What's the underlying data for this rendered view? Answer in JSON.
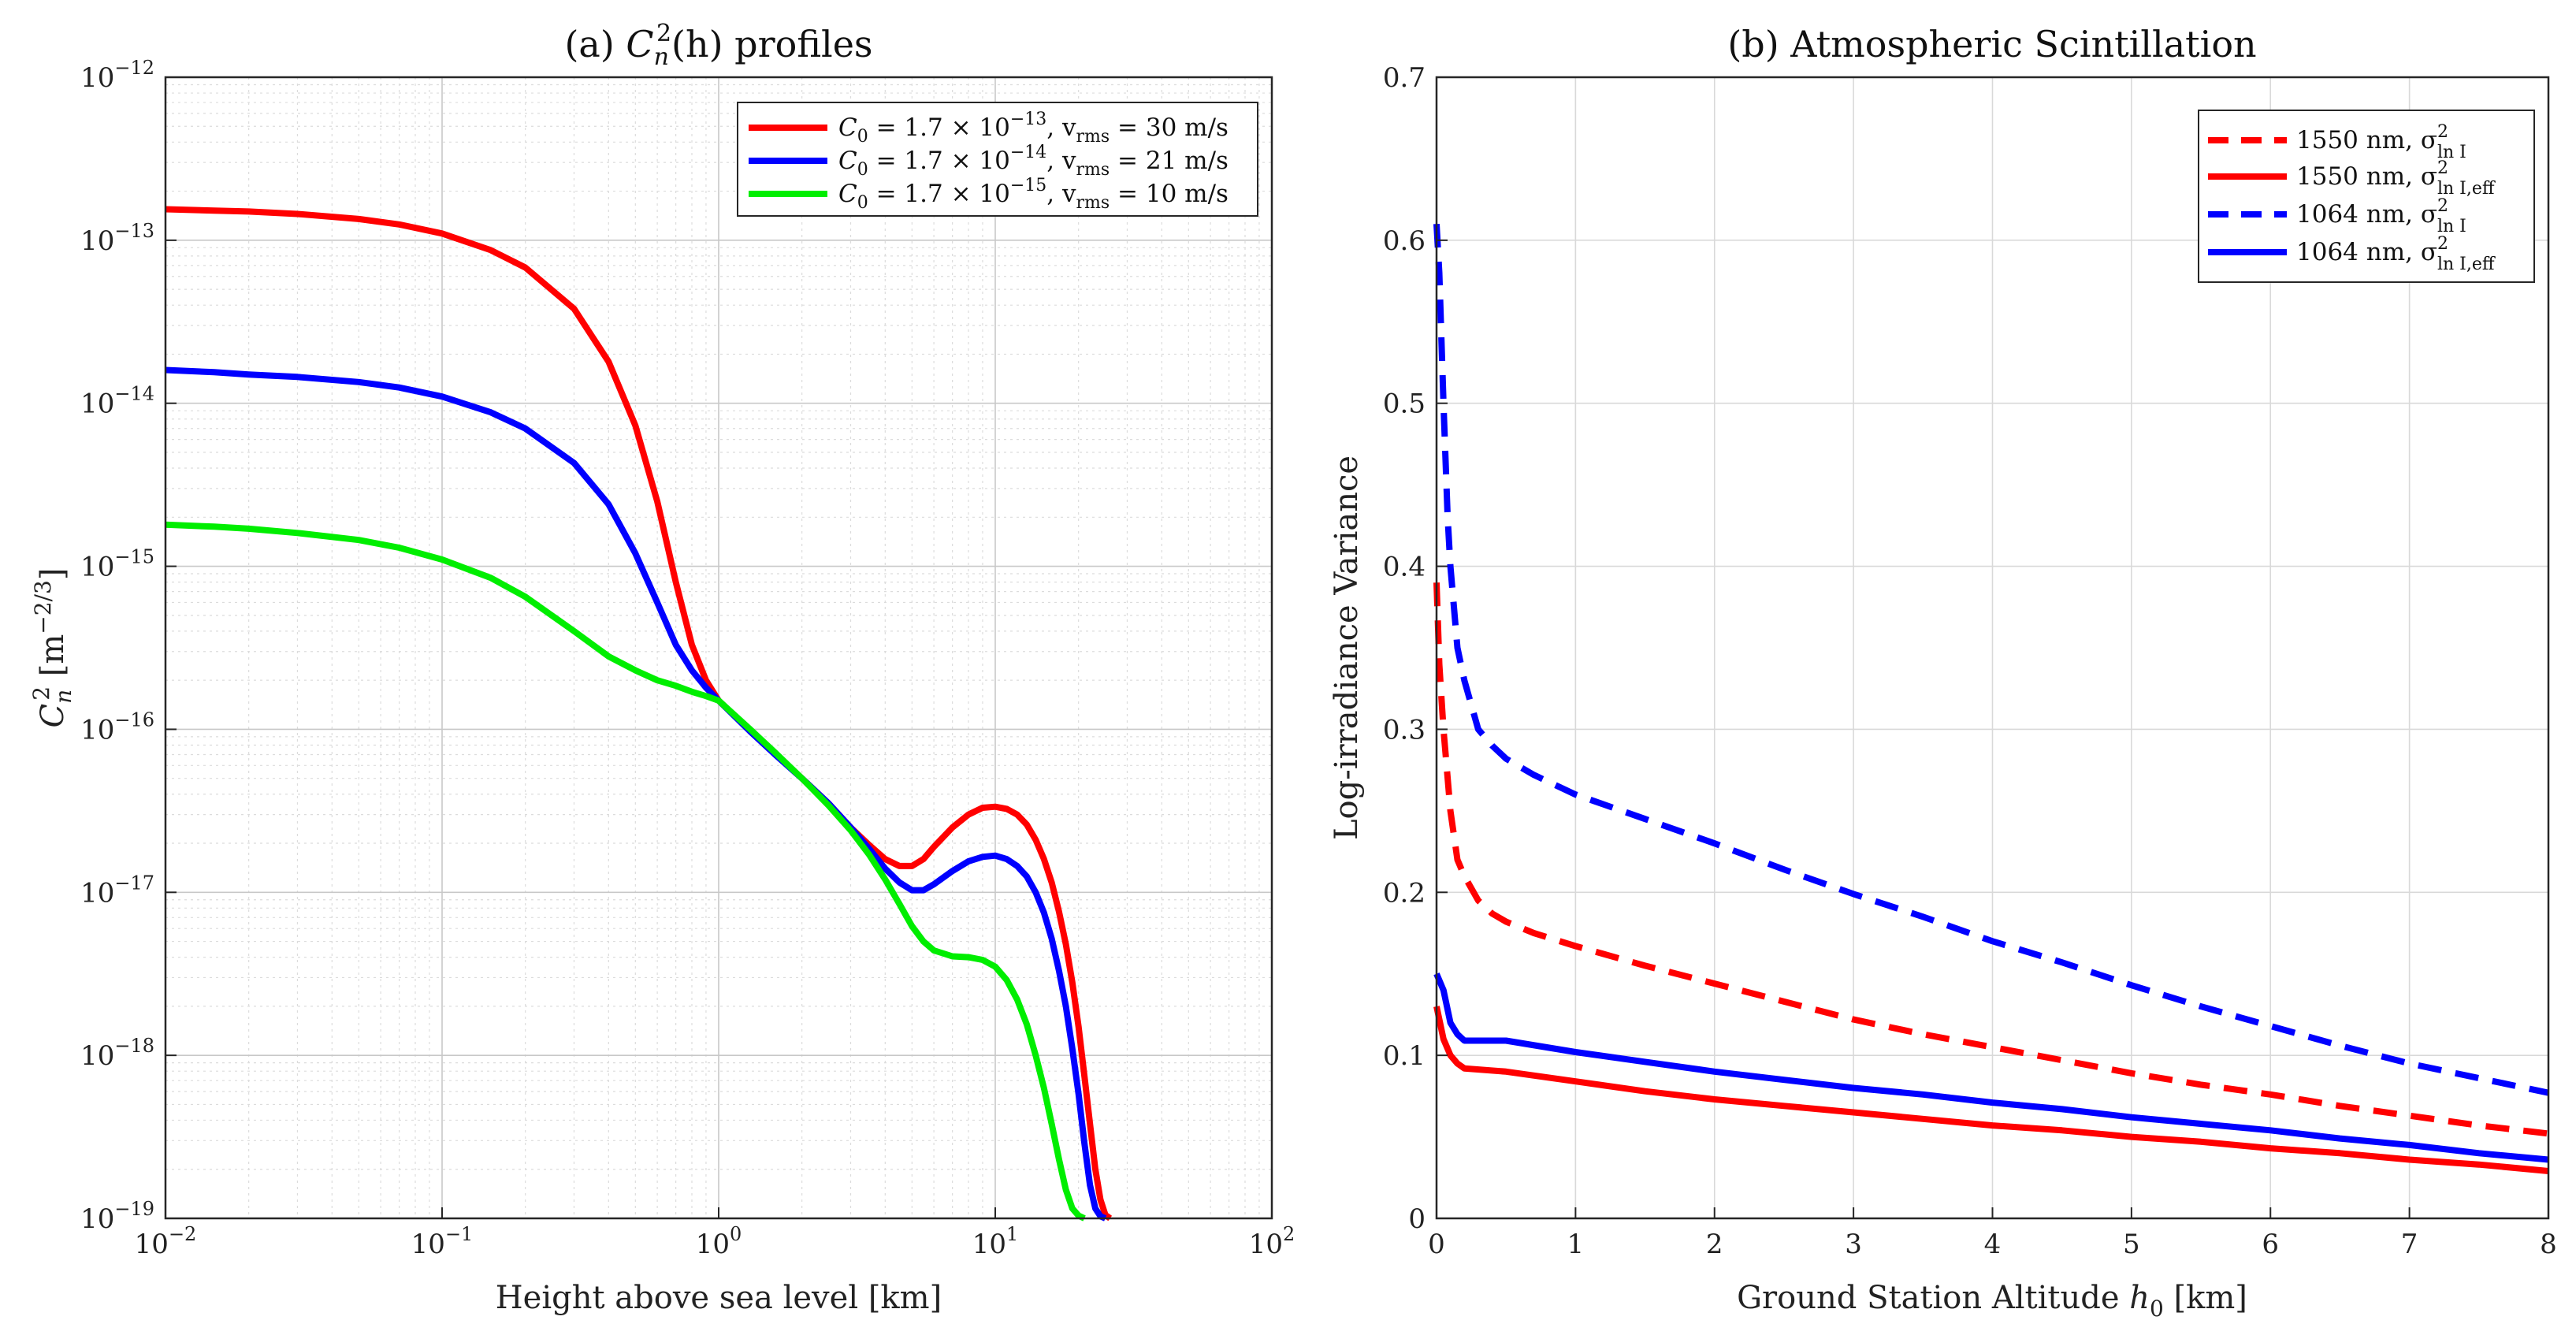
{
  "chart_data": [
    {
      "type": "line",
      "scale": "log-log",
      "title": "(a) C_n^2(h) profiles",
      "title_parts": {
        "prefix": "(a) ",
        "sym": "C",
        "sub": "n",
        "sup": "2",
        "arg": "(h)",
        "suffix": " profiles"
      },
      "xlabel": "Height above sea level [km]",
      "ylabel": "C_n^2 [m^-2/3]",
      "ylabel_parts": {
        "sym": "C",
        "sub": "n",
        "sup": "2",
        "units_pre": " [m",
        "units_sup": "−2/3",
        "units_post": "]"
      },
      "xlim": [
        0.01,
        100
      ],
      "ylim": [
        1e-19,
        1e-12
      ],
      "xticks": [
        {
          "mantissa": "10",
          "exp": "−2"
        },
        {
          "mantissa": "10",
          "exp": "−1"
        },
        {
          "mantissa": "10",
          "exp": "0"
        },
        {
          "mantissa": "10",
          "exp": "1"
        },
        {
          "mantissa": "10",
          "exp": "2"
        }
      ],
      "yticks": [
        {
          "mantissa": "10",
          "exp": "−19"
        },
        {
          "mantissa": "10",
          "exp": "−18"
        },
        {
          "mantissa": "10",
          "exp": "−17"
        },
        {
          "mantissa": "10",
          "exp": "−16"
        },
        {
          "mantissa": "10",
          "exp": "−15"
        },
        {
          "mantissa": "10",
          "exp": "−14"
        },
        {
          "mantissa": "10",
          "exp": "−13"
        },
        {
          "mantissa": "10",
          "exp": "−12"
        }
      ],
      "grid": true,
      "legend_position": "top-right",
      "series": [
        {
          "name": "C0 = 1.7 x 10^-13, v_rms = 30 m/s",
          "legend": {
            "a": "C",
            "a_sub": "0",
            "b": " = 1.7 × 10",
            "b_sup": "−13",
            "c": ", v",
            "c_sub": "rms",
            "d": " = 30 m/s"
          },
          "color": "#ff0000",
          "dash": "solid",
          "C0": 1.7e-13,
          "v_rms": 30,
          "x": [
            0.01,
            0.015,
            0.02,
            0.03,
            0.05,
            0.07,
            0.1,
            0.15,
            0.2,
            0.3,
            0.4,
            0.5,
            0.6,
            0.7,
            0.8,
            0.9,
            1.0,
            1.3,
            1.6,
            2,
            2.5,
            3,
            3.5,
            4,
            4.5,
            5,
            5.5,
            6,
            7,
            8,
            9,
            10,
            11,
            12,
            13,
            14,
            15,
            16,
            17,
            18,
            19,
            20,
            21,
            22,
            23,
            24,
            25,
            26
          ],
          "y": [
            1.55e-13,
            1.52e-13,
            1.5e-13,
            1.45e-13,
            1.35e-13,
            1.25e-13,
            1.1e-13,
            8.7e-14,
            6.8e-14,
            3.8e-14,
            1.8e-14,
            7.3e-15,
            2.5e-15,
            8e-16,
            3.3e-16,
            2e-16,
            1.5e-16,
            9.8e-17,
            7.1e-17,
            5e-17,
            3.5e-17,
            2.5e-17,
            1.95e-17,
            1.6e-17,
            1.45e-17,
            1.45e-17,
            1.6e-17,
            1.9e-17,
            2.5e-17,
            3e-17,
            3.3e-17,
            3.35e-17,
            3.25e-17,
            3e-17,
            2.6e-17,
            2.1e-17,
            1.6e-17,
            1.15e-17,
            7.6e-18,
            4.8e-18,
            2.8e-18,
            1.5e-18,
            7.5e-19,
            3.8e-19,
            2e-19,
            1.3e-19,
            1.05e-19,
            1e-19
          ]
        },
        {
          "name": "C0 = 1.7 x 10^-14, v_rms = 21 m/s",
          "legend": {
            "a": "C",
            "a_sub": "0",
            "b": " = 1.7 × 10",
            "b_sup": "−14",
            "c": ", v",
            "c_sub": "rms",
            "d": " = 21 m/s"
          },
          "color": "#0000ff",
          "dash": "solid",
          "C0": 1.7e-14,
          "v_rms": 21,
          "x": [
            0.01,
            0.015,
            0.02,
            0.03,
            0.05,
            0.07,
            0.1,
            0.15,
            0.2,
            0.3,
            0.4,
            0.5,
            0.6,
            0.7,
            0.8,
            0.9,
            1.0,
            1.3,
            1.6,
            2,
            2.5,
            3,
            3.5,
            4,
            4.5,
            5,
            5.5,
            6,
            7,
            8,
            9,
            10,
            11,
            12,
            13,
            14,
            15,
            16,
            17,
            18,
            19,
            20,
            21,
            22,
            23,
            24,
            25
          ],
          "y": [
            1.6e-14,
            1.55e-14,
            1.5e-14,
            1.45e-14,
            1.35e-14,
            1.25e-14,
            1.1e-14,
            8.8e-15,
            7e-15,
            4.3e-15,
            2.4e-15,
            1.2e-15,
            6e-16,
            3.3e-16,
            2.3e-16,
            1.8e-16,
            1.5e-16,
            9.7e-17,
            7e-17,
            5e-17,
            3.5e-17,
            2.5e-17,
            1.85e-17,
            1.4e-17,
            1.15e-17,
            1.03e-17,
            1.03e-17,
            1.12e-17,
            1.35e-17,
            1.55e-17,
            1.65e-17,
            1.68e-17,
            1.6e-17,
            1.45e-17,
            1.25e-17,
            1e-17,
            7.5e-18,
            5.2e-18,
            3.3e-18,
            2e-18,
            1.1e-18,
            5.8e-19,
            2.9e-19,
            1.6e-19,
            1.15e-19,
            1.03e-19,
            1e-19
          ]
        },
        {
          "name": "C0 = 1.7 x 10^-15, v_rms = 10 m/s",
          "legend": {
            "a": "C",
            "a_sub": "0",
            "b": " = 1.7 × 10",
            "b_sup": "−15",
            "c": ", v",
            "c_sub": "rms",
            "d": " = 10 m/s"
          },
          "color": "#00ee00",
          "dash": "solid",
          "C0": 1.7e-15,
          "v_rms": 10,
          "x": [
            0.01,
            0.015,
            0.02,
            0.03,
            0.05,
            0.07,
            0.1,
            0.15,
            0.2,
            0.3,
            0.4,
            0.5,
            0.6,
            0.7,
            0.8,
            0.9,
            1.0,
            1.3,
            1.6,
            2,
            2.5,
            3,
            3.5,
            4,
            4.5,
            5,
            5.5,
            6,
            7,
            8,
            9,
            10,
            11,
            12,
            13,
            14,
            15,
            16,
            17,
            18,
            19,
            20,
            21
          ],
          "y": [
            1.8e-15,
            1.75e-15,
            1.7e-15,
            1.6e-15,
            1.45e-15,
            1.3e-15,
            1.1e-15,
            8.5e-16,
            6.5e-16,
            4e-16,
            2.8e-16,
            2.3e-16,
            2e-16,
            1.85e-16,
            1.7e-16,
            1.6e-16,
            1.5e-16,
            1e-16,
            7.2e-17,
            5e-17,
            3.4e-17,
            2.4e-17,
            1.7e-17,
            1.2e-17,
            8.5e-18,
            6.2e-18,
            5e-18,
            4.4e-18,
            4.05e-18,
            4e-18,
            3.85e-18,
            3.5e-18,
            2.9e-18,
            2.2e-18,
            1.55e-18,
            1e-18,
            6.3e-19,
            3.8e-19,
            2.3e-19,
            1.5e-19,
            1.15e-19,
            1.04e-19,
            1e-19
          ]
        }
      ]
    },
    {
      "type": "line",
      "scale": "linear",
      "title": "(b) Atmospheric Scintillation",
      "xlabel": "Ground Station Altitude h_0 [km]",
      "xlabel_parts": {
        "text": "Ground Station Altitude ",
        "sym": "h",
        "sub": "0",
        "post": " [km]"
      },
      "ylabel": "Log-irradiance Variance",
      "xlim": [
        0,
        8
      ],
      "ylim": [
        0,
        0.7
      ],
      "xticks": [
        "0",
        "1",
        "2",
        "3",
        "4",
        "5",
        "6",
        "7",
        "8"
      ],
      "yticks": [
        "0",
        "0.1",
        "0.2",
        "0.3",
        "0.4",
        "0.5",
        "0.6",
        "0.7"
      ],
      "grid": true,
      "legend_position": "top-right",
      "series": [
        {
          "name": "1550 nm, sigma^2_ln I",
          "legend": {
            "a": "1550 nm, σ",
            "sup": "2",
            "sub": "ln I"
          },
          "color": "#ff0000",
          "dash": "dashed",
          "x": [
            0,
            0.02,
            0.05,
            0.08,
            0.1,
            0.15,
            0.2,
            0.3,
            0.4,
            0.5,
            0.7,
            1,
            1.5,
            2,
            2.5,
            3,
            3.5,
            4,
            4.5,
            5,
            5.5,
            6,
            6.5,
            7,
            7.5,
            8
          ],
          "y": [
            0.39,
            0.34,
            0.3,
            0.27,
            0.25,
            0.22,
            0.21,
            0.195,
            0.187,
            0.182,
            0.175,
            0.167,
            0.155,
            0.144,
            0.133,
            0.122,
            0.113,
            0.105,
            0.097,
            0.089,
            0.082,
            0.076,
            0.069,
            0.063,
            0.057,
            0.052
          ]
        },
        {
          "name": "1550 nm, sigma^2_ln I,eff",
          "legend": {
            "a": "1550 nm, σ",
            "sup": "2",
            "sub": "ln I,eff"
          },
          "color": "#ff0000",
          "dash": "solid",
          "x": [
            0,
            0.05,
            0.1,
            0.15,
            0.2,
            0.5,
            1,
            1.5,
            2,
            2.5,
            3,
            3.5,
            4,
            4.5,
            5,
            5.5,
            6,
            6.5,
            7,
            7.5,
            8
          ],
          "y": [
            0.13,
            0.11,
            0.1,
            0.095,
            0.092,
            0.09,
            0.084,
            0.078,
            0.073,
            0.069,
            0.065,
            0.061,
            0.057,
            0.054,
            0.05,
            0.047,
            0.043,
            0.04,
            0.036,
            0.033,
            0.029
          ]
        },
        {
          "name": "1064 nm, sigma^2_ln I",
          "legend": {
            "a": "1064 nm, σ",
            "sup": "2",
            "sub": "ln I"
          },
          "color": "#0000ff",
          "dash": "dashed",
          "x": [
            0,
            0.02,
            0.05,
            0.08,
            0.1,
            0.15,
            0.2,
            0.25,
            0.3,
            0.4,
            0.5,
            0.7,
            1,
            1.5,
            2,
            2.5,
            3,
            3.5,
            4,
            4.5,
            5,
            5.5,
            6,
            6.5,
            7,
            7.5,
            8
          ],
          "y": [
            0.61,
            0.58,
            0.5,
            0.43,
            0.4,
            0.35,
            0.33,
            0.315,
            0.3,
            0.29,
            0.282,
            0.272,
            0.26,
            0.245,
            0.23,
            0.214,
            0.199,
            0.185,
            0.17,
            0.157,
            0.143,
            0.13,
            0.118,
            0.106,
            0.095,
            0.086,
            0.077
          ]
        },
        {
          "name": "1064 nm, sigma^2_ln I,eff",
          "legend": {
            "a": "1064 nm, σ",
            "sup": "2",
            "sub": "ln I,eff"
          },
          "color": "#0000ff",
          "dash": "solid",
          "x": [
            0,
            0.05,
            0.1,
            0.15,
            0.2,
            0.3,
            0.5,
            1,
            1.5,
            2,
            2.5,
            3,
            3.5,
            4,
            4.5,
            5,
            5.5,
            6,
            6.5,
            7,
            7.5,
            8
          ],
          "y": [
            0.15,
            0.14,
            0.12,
            0.113,
            0.109,
            0.109,
            0.109,
            0.102,
            0.096,
            0.09,
            0.085,
            0.08,
            0.076,
            0.071,
            0.067,
            0.062,
            0.058,
            0.054,
            0.049,
            0.045,
            0.04,
            0.036
          ]
        }
      ]
    }
  ]
}
